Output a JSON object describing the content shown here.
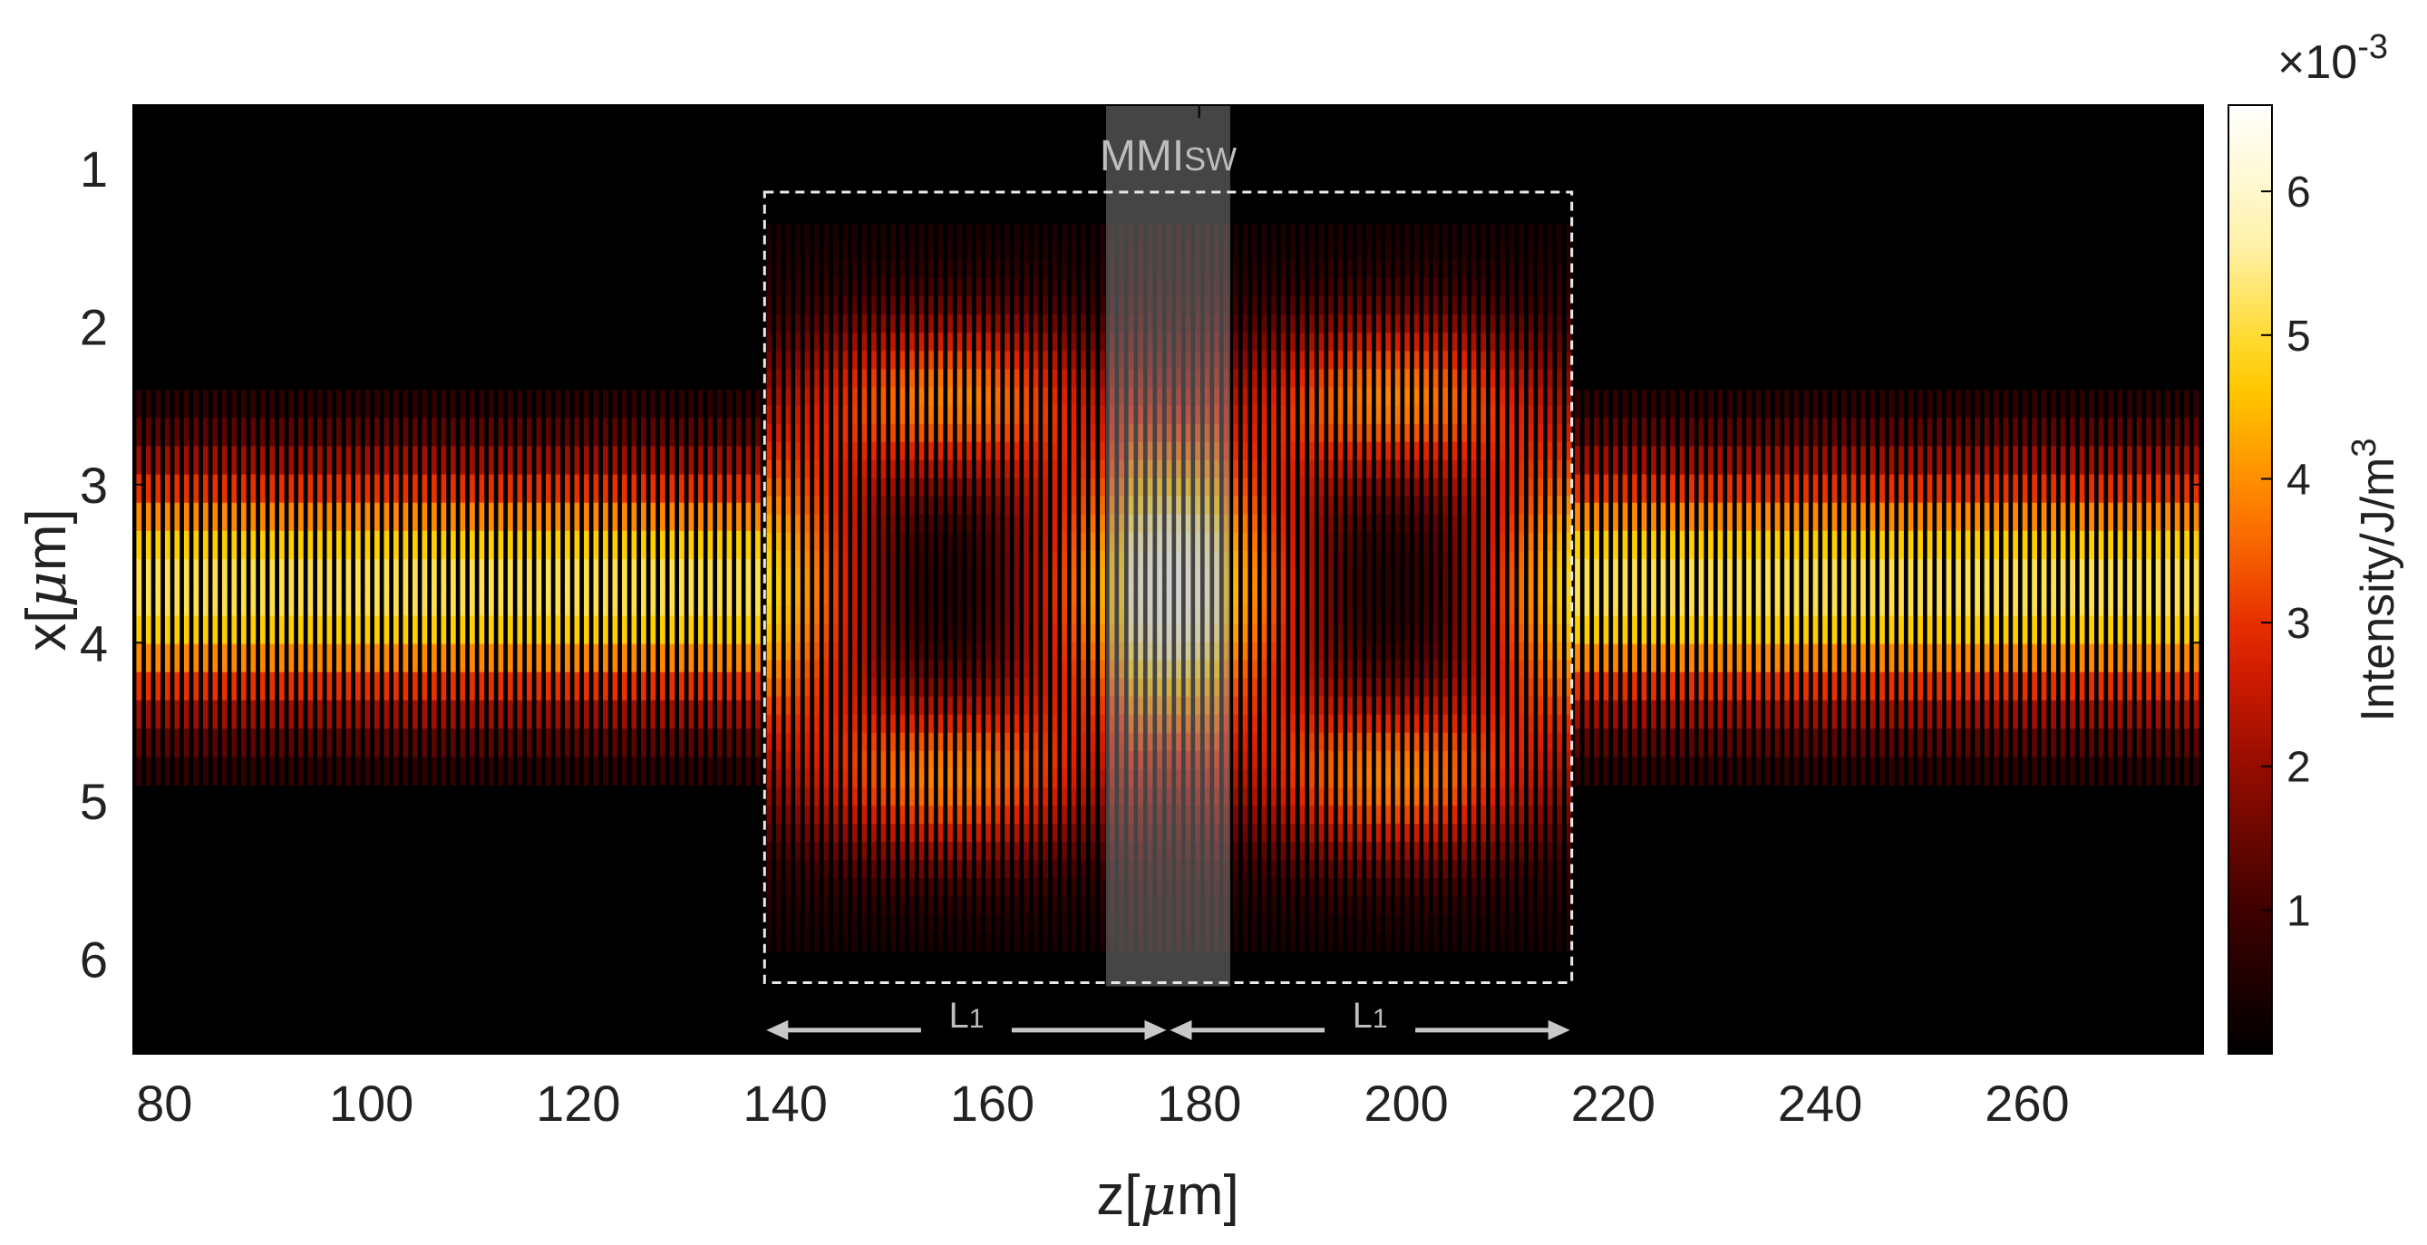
{
  "chart_data": {
    "type": "heatmap",
    "xlabel_prefix": "z[",
    "xlabel_mu": "μ",
    "xlabel_suffix": "m]",
    "ylabel_prefix": "x[",
    "ylabel_mu": "μ",
    "ylabel_suffix": "m]",
    "xlim": [
      77,
      277
    ],
    "ylim": [
      0.6,
      6.6
    ],
    "y_reversed": true,
    "x_ticks": [
      80,
      100,
      120,
      140,
      160,
      180,
      200,
      220,
      240,
      260
    ],
    "y_ticks": [
      1,
      2,
      3,
      4,
      5,
      6
    ],
    "colorbar": {
      "label": "Intensity/J/m",
      "label_sup": "3",
      "exponent_base": "×10",
      "exponent_sup": "-3",
      "range": [
        0,
        6.6
      ],
      "ticks": [
        1,
        2,
        3,
        4,
        5,
        6
      ],
      "colormap": "hot",
      "colors": [
        "#000000",
        "#3a0000",
        "#8a0a00",
        "#e02000",
        "#ff7a00",
        "#ffd000",
        "#fff3b0",
        "#ffffff"
      ]
    },
    "input_waveguide": {
      "z": [
        77,
        138
      ],
      "x_center": 3.65,
      "width": 2.5,
      "peak": 5.2
    },
    "output_waveguide": {
      "z": [
        216,
        277
      ],
      "x_center": 3.65,
      "width": 2.5,
      "peak": 5.2
    },
    "mmi_region": {
      "z": [
        138,
        216
      ],
      "x": [
        1.15,
        6.15
      ],
      "peak_center_z": 177,
      "peak_center": 6.2,
      "lobe_x": [
        2.5,
        4.9
      ]
    },
    "self_imaging_band": {
      "z": [
        171,
        183
      ]
    },
    "annotations": {
      "region_label_main": "MMI",
      "region_label_sub": "SW",
      "length_label_left_main": "L",
      "length_label_left_sub": "1",
      "length_label_right_main": "L",
      "length_label_right_sub": "1",
      "arrow_left_z": [
        138,
        177
      ],
      "arrow_right_z": [
        177,
        216
      ],
      "arrow_x": 6.45
    }
  }
}
